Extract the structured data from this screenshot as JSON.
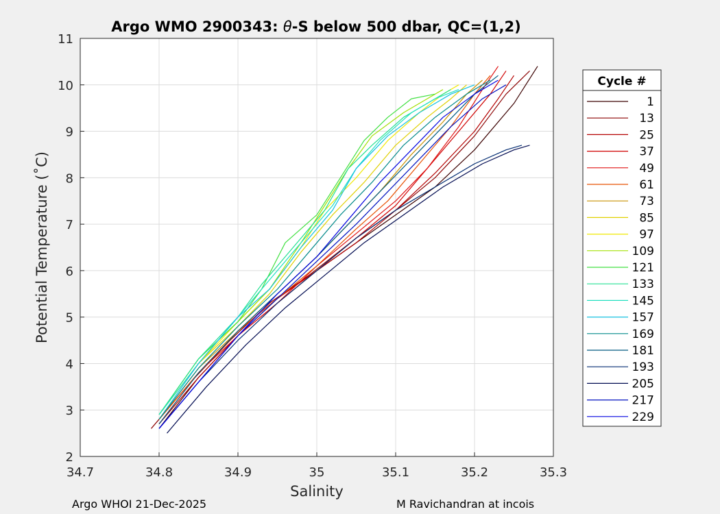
{
  "footer": {
    "left": "Argo WHOI 21-Dec-2025",
    "right": "M Ravichandran at incois"
  },
  "chart_data": {
    "type": "line",
    "title_prefix": "Argo WMO 2900343: ",
    "title_symbol": "θ",
    "title_suffix": "-S below 500 dbar,  QC=(1,2)",
    "xlabel": "Salinity",
    "ylabel": "Potential Temperature (˚C)",
    "xlim": [
      34.7,
      35.3
    ],
    "ylim": [
      2,
      11
    ],
    "xticks": [
      34.7,
      34.8,
      34.9,
      35.0,
      35.1,
      35.2,
      35.3
    ],
    "xtick_labels": [
      "34.7",
      "34.8",
      "34.9",
      "35",
      "35.1",
      "35.2",
      "35.3"
    ],
    "yticks": [
      2,
      3,
      4,
      5,
      6,
      7,
      8,
      9,
      10,
      11
    ],
    "ytick_labels": [
      "2",
      "3",
      "4",
      "5",
      "6",
      "7",
      "8",
      "9",
      "10",
      "11"
    ],
    "grid": true,
    "legend": {
      "title": "Cycle #",
      "placement": "right-outside",
      "entries": [
        {
          "label": "1",
          "color": "#3a0000"
        },
        {
          "label": "13",
          "color": "#8b0000"
        },
        {
          "label": "25",
          "color": "#b40000"
        },
        {
          "label": "37",
          "color": "#d00000"
        },
        {
          "label": "49",
          "color": "#e01010"
        },
        {
          "label": "61",
          "color": "#e85000"
        },
        {
          "label": "73",
          "color": "#c89000"
        },
        {
          "label": "85",
          "color": "#e0d000"
        },
        {
          "label": "97",
          "color": "#f0e800"
        },
        {
          "label": "109",
          "color": "#a0e000"
        },
        {
          "label": "121",
          "color": "#40e040"
        },
        {
          "label": "133",
          "color": "#20e090"
        },
        {
          "label": "145",
          "color": "#20e0c0"
        },
        {
          "label": "157",
          "color": "#10c0e0"
        },
        {
          "label": "169",
          "color": "#008888"
        },
        {
          "label": "181",
          "color": "#005a80"
        },
        {
          "label": "193",
          "color": "#002a70"
        },
        {
          "label": "205",
          "color": "#000a50"
        },
        {
          "label": "217",
          "color": "#0010c0"
        },
        {
          "label": "229",
          "color": "#0000e0"
        }
      ]
    },
    "series": [
      {
        "name": "1",
        "color": "#3a0000",
        "x": [
          34.8,
          34.85,
          34.9,
          34.95,
          35.0,
          35.05,
          35.1,
          35.15,
          35.2,
          35.25,
          35.28
        ],
        "y": [
          2.6,
          3.7,
          4.6,
          5.4,
          6.0,
          6.6,
          7.2,
          7.8,
          8.6,
          9.6,
          10.4
        ]
      },
      {
        "name": "13",
        "color": "#8b0000",
        "x": [
          34.79,
          34.84,
          34.89,
          34.94,
          34.99,
          35.05,
          35.1,
          35.15,
          35.2,
          35.24,
          35.27
        ],
        "y": [
          2.6,
          3.6,
          4.5,
          5.3,
          5.9,
          6.7,
          7.3,
          8.0,
          8.9,
          9.8,
          10.3
        ]
      },
      {
        "name": "25",
        "color": "#b40000",
        "x": [
          34.8,
          34.85,
          34.9,
          34.95,
          35.0,
          35.05,
          35.1,
          35.15,
          35.2,
          35.23,
          35.25
        ],
        "y": [
          2.7,
          3.7,
          4.6,
          5.3,
          6.0,
          6.6,
          7.3,
          8.1,
          9.0,
          9.7,
          10.2
        ]
      },
      {
        "name": "37",
        "color": "#d00000",
        "x": [
          34.8,
          34.85,
          34.9,
          34.95,
          35.0,
          35.05,
          35.1,
          35.14,
          35.18,
          35.22,
          35.24
        ],
        "y": [
          2.7,
          3.8,
          4.7,
          5.4,
          6.0,
          6.7,
          7.4,
          8.2,
          9.0,
          9.8,
          10.3
        ]
      },
      {
        "name": "49",
        "color": "#e01010",
        "x": [
          34.8,
          34.85,
          34.9,
          34.95,
          35.0,
          35.05,
          35.1,
          35.14,
          35.18,
          35.21,
          35.23
        ],
        "y": [
          2.8,
          3.8,
          4.6,
          5.3,
          6.1,
          6.8,
          7.5,
          8.2,
          9.1,
          9.9,
          10.4
        ]
      },
      {
        "name": "61",
        "color": "#e85000",
        "x": [
          34.8,
          34.85,
          34.9,
          34.95,
          35.0,
          35.05,
          35.09,
          35.13,
          35.17,
          35.2,
          35.22
        ],
        "y": [
          2.8,
          3.8,
          4.7,
          5.4,
          6.1,
          6.9,
          7.5,
          8.3,
          9.1,
          9.8,
          10.2
        ]
      },
      {
        "name": "73",
        "color": "#c89000",
        "x": [
          34.8,
          34.85,
          34.9,
          34.95,
          35.0,
          35.04,
          35.08,
          35.12,
          35.16,
          35.19,
          35.21
        ],
        "y": [
          2.8,
          3.9,
          4.7,
          5.5,
          6.3,
          7.0,
          7.7,
          8.5,
          9.2,
          9.8,
          10.1
        ]
      },
      {
        "name": "85",
        "color": "#e0d000",
        "x": [
          34.8,
          34.85,
          34.9,
          34.94,
          34.98,
          35.02,
          35.06,
          35.1,
          35.14,
          35.17,
          35.19
        ],
        "y": [
          2.9,
          4.0,
          4.8,
          5.5,
          6.4,
          7.2,
          7.9,
          8.7,
          9.3,
          9.7,
          10.0
        ]
      },
      {
        "name": "97",
        "color": "#f0e800",
        "x": [
          34.8,
          34.85,
          34.9,
          34.94,
          34.98,
          35.01,
          35.05,
          35.09,
          35.13,
          35.16,
          35.18
        ],
        "y": [
          2.9,
          4.0,
          4.9,
          5.6,
          6.5,
          7.3,
          8.0,
          8.8,
          9.4,
          9.8,
          10.0
        ]
      },
      {
        "name": "109",
        "color": "#a0e000",
        "x": [
          34.8,
          34.85,
          34.9,
          34.94,
          34.98,
          35.01,
          35.04,
          35.07,
          35.11,
          35.14,
          35.16
        ],
        "y": [
          2.9,
          4.1,
          4.9,
          5.6,
          6.6,
          7.4,
          8.2,
          8.9,
          9.4,
          9.7,
          9.9
        ]
      },
      {
        "name": "121",
        "color": "#40e040",
        "x": [
          34.8,
          34.85,
          34.9,
          34.93,
          34.96,
          35.0,
          35.03,
          35.06,
          35.09,
          35.12,
          35.15
        ],
        "y": [
          2.9,
          4.1,
          4.9,
          5.6,
          6.6,
          7.2,
          8.0,
          8.8,
          9.3,
          9.7,
          9.8
        ]
      },
      {
        "name": "133",
        "color": "#20e090",
        "x": [
          34.8,
          34.85,
          34.9,
          34.93,
          34.97,
          35.01,
          35.04,
          35.07,
          35.11,
          35.14,
          35.17
        ],
        "y": [
          2.9,
          4.1,
          5.0,
          5.7,
          6.5,
          7.3,
          8.2,
          8.7,
          9.3,
          9.6,
          9.9
        ]
      },
      {
        "name": "145",
        "color": "#20e0c0",
        "x": [
          34.8,
          34.85,
          34.9,
          34.94,
          34.98,
          35.02,
          35.05,
          35.08,
          35.12,
          35.15,
          35.18
        ],
        "y": [
          2.9,
          4.0,
          5.0,
          5.8,
          6.6,
          7.4,
          8.2,
          8.8,
          9.4,
          9.7,
          9.9
        ]
      },
      {
        "name": "157",
        "color": "#10c0e0",
        "x": [
          34.8,
          34.85,
          34.9,
          34.94,
          34.98,
          35.02,
          35.05,
          35.09,
          35.13,
          35.17,
          35.2
        ],
        "y": [
          2.8,
          4.0,
          5.0,
          5.6,
          6.5,
          7.3,
          8.2,
          8.9,
          9.4,
          9.8,
          10.0
        ]
      },
      {
        "name": "169",
        "color": "#008888",
        "x": [
          34.8,
          34.85,
          34.9,
          34.95,
          34.99,
          35.03,
          35.07,
          35.11,
          35.15,
          35.19,
          35.22
        ],
        "y": [
          2.8,
          3.9,
          4.8,
          5.6,
          6.4,
          7.2,
          7.9,
          8.7,
          9.3,
          9.8,
          10.1
        ]
      },
      {
        "name": "181",
        "color": "#005a80",
        "x": [
          34.8,
          34.85,
          34.9,
          34.95,
          35.0,
          35.04,
          35.08,
          35.12,
          35.16,
          35.2,
          35.23
        ],
        "y": [
          2.7,
          3.8,
          4.7,
          5.5,
          6.3,
          7.0,
          7.7,
          8.4,
          9.1,
          9.8,
          10.2
        ]
      },
      {
        "name": "193",
        "color": "#002a70",
        "x": [
          34.8,
          34.85,
          34.9,
          34.95,
          35.0,
          35.05,
          35.1,
          35.15,
          35.2,
          35.24,
          35.26
        ],
        "y": [
          2.6,
          3.6,
          4.5,
          5.3,
          6.0,
          6.7,
          7.3,
          7.8,
          8.3,
          8.6,
          8.7
        ]
      },
      {
        "name": "205",
        "color": "#000a50",
        "x": [
          34.81,
          34.86,
          34.91,
          34.96,
          35.01,
          35.06,
          35.11,
          35.16,
          35.21,
          35.25,
          35.27
        ],
        "y": [
          2.5,
          3.5,
          4.4,
          5.2,
          5.9,
          6.6,
          7.2,
          7.8,
          8.3,
          8.6,
          8.7
        ]
      },
      {
        "name": "217",
        "color": "#0010c0",
        "x": [
          34.8,
          34.85,
          34.9,
          34.95,
          35.0,
          35.05,
          35.09,
          35.13,
          35.17,
          35.21,
          35.24
        ],
        "y": [
          2.6,
          3.6,
          4.6,
          5.4,
          6.2,
          7.0,
          7.7,
          8.4,
          9.1,
          9.7,
          10.0
        ]
      },
      {
        "name": "229",
        "color": "#0000e0",
        "x": [
          34.8,
          34.85,
          34.9,
          34.95,
          35.0,
          35.04,
          35.08,
          35.12,
          35.16,
          35.2,
          35.23
        ],
        "y": [
          2.6,
          3.6,
          4.6,
          5.5,
          6.3,
          7.1,
          7.9,
          8.6,
          9.3,
          9.8,
          10.1
        ]
      }
    ]
  }
}
